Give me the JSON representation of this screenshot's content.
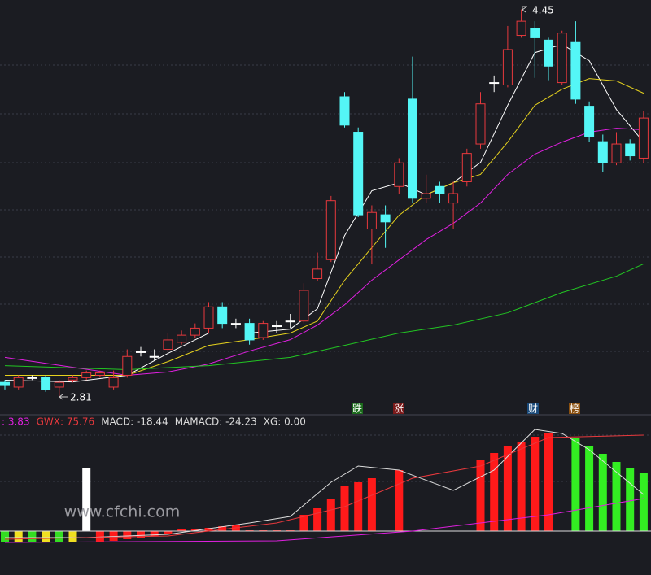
{
  "chart_data": [
    {
      "type": "candlestick",
      "categories": [
        null,
        null,
        null,
        null,
        null,
        null,
        null,
        null,
        null,
        null,
        null,
        null,
        null,
        null,
        null,
        null,
        null,
        null,
        null,
        null,
        null,
        null,
        null,
        null,
        null,
        null,
        null,
        null,
        null,
        null,
        null,
        null,
        null,
        null,
        null,
        null,
        null,
        null,
        null,
        null,
        null,
        null,
        null,
        null,
        null,
        null,
        null,
        null
      ],
      "open": [
        2.87,
        2.85,
        2.89,
        2.89,
        2.85,
        2.88,
        2.89,
        2.9,
        2.85,
        2.9,
        3.0,
        2.98,
        3.01,
        3.04,
        3.07,
        3.1,
        3.19,
        3.12,
        3.12,
        3.06,
        3.11,
        3.13,
        3.13,
        3.31,
        3.39,
        4.08,
        3.93,
        3.52,
        3.58,
        3.7,
        4.07,
        3.65,
        3.7,
        3.63,
        3.72,
        3.88,
        4.14,
        4.13,
        4.34,
        4.37,
        4.32,
        4.14,
        4.31,
        4.04,
        3.89,
        3.8,
        3.88,
        3.82
      ],
      "high": [
        2.88,
        2.9,
        2.9,
        2.9,
        2.88,
        2.9,
        2.92,
        2.92,
        2.92,
        3.01,
        3.02,
        3.01,
        3.08,
        3.09,
        3.12,
        3.21,
        3.21,
        3.14,
        3.14,
        3.13,
        3.13,
        3.16,
        3.29,
        3.42,
        3.66,
        4.1,
        3.95,
        3.62,
        3.62,
        3.82,
        4.25,
        3.75,
        3.72,
        3.72,
        3.86,
        4.1,
        4.17,
        4.38,
        4.45,
        4.4,
        4.33,
        4.36,
        4.4,
        4.06,
        3.92,
        3.93,
        3.9,
        4.02
      ],
      "low": [
        2.84,
        2.84,
        2.88,
        2.83,
        2.81,
        2.87,
        2.88,
        2.89,
        2.84,
        2.89,
        2.98,
        2.96,
        3.0,
        3.03,
        3.06,
        3.08,
        3.1,
        3.1,
        3.03,
        3.05,
        3.08,
        3.1,
        3.12,
        3.3,
        3.38,
        3.95,
        3.57,
        3.37,
        3.44,
        3.67,
        3.63,
        3.63,
        3.63,
        3.52,
        3.7,
        3.86,
        4.1,
        4.12,
        4.33,
        4.16,
        4.15,
        4.13,
        4.05,
        3.89,
        3.76,
        3.79,
        3.81,
        3.8
      ],
      "close": [
        2.86,
        2.89,
        2.89,
        2.84,
        2.87,
        2.89,
        2.91,
        2.91,
        2.89,
        2.98,
        3.0,
        2.98,
        3.05,
        3.07,
        3.1,
        3.19,
        3.12,
        3.12,
        3.05,
        3.12,
        3.11,
        3.13,
        3.26,
        3.35,
        3.64,
        3.96,
        3.58,
        3.59,
        3.55,
        3.8,
        3.65,
        3.67,
        3.67,
        3.67,
        3.84,
        4.05,
        4.14,
        4.28,
        4.4,
        4.33,
        4.21,
        4.35,
        4.07,
        3.91,
        3.8,
        3.88,
        3.83,
        3.99
      ],
      "up_color": "#e8393d",
      "down_color": "#54f6f6",
      "flat_color": "#ffffff",
      "ylim": [
        2.75,
        4.49
      ],
      "series": [
        {
          "color": "#ffffff",
          "x": [
            0,
            5,
            9,
            12,
            15,
            18,
            21,
            23,
            25,
            27,
            29,
            31,
            33,
            35,
            37,
            39,
            41,
            43,
            45,
            47
          ],
          "values": [
            2.879,
            2.872,
            2.9,
            2.993,
            3.079,
            3.079,
            3.096,
            3.182,
            3.492,
            3.682,
            3.716,
            3.665,
            3.716,
            3.802,
            4.044,
            4.267,
            4.302,
            4.233,
            4.026,
            3.888
          ]
        },
        {
          "color": "#e6d21e",
          "x": [
            0,
            9,
            12,
            15,
            18,
            21,
            23,
            25,
            27,
            29,
            31,
            33,
            35,
            37,
            39,
            41,
            43,
            45,
            47
          ],
          "values": [
            2.9,
            2.9,
            2.958,
            3.027,
            3.051,
            3.079,
            3.13,
            3.303,
            3.441,
            3.578,
            3.665,
            3.716,
            3.751,
            3.888,
            4.044,
            4.112,
            4.157,
            4.147,
            4.095
          ]
        },
        {
          "color": "#e020e0",
          "x": [
            0,
            5,
            9,
            12,
            15,
            18,
            21,
            23,
            25,
            27,
            29,
            31,
            33,
            35,
            37,
            39,
            41,
            43,
            45,
            47
          ],
          "values": [
            2.976,
            2.934,
            2.9,
            2.914,
            2.948,
            3.003,
            3.051,
            3.113,
            3.199,
            3.303,
            3.389,
            3.475,
            3.544,
            3.63,
            3.751,
            3.837,
            3.888,
            3.93,
            3.947,
            3.94
          ]
        },
        {
          "color": "#22c522",
          "x": [
            0,
            9,
            15,
            21,
            25,
            29,
            33,
            37,
            41,
            45,
            47
          ],
          "values": [
            2.941,
            2.924,
            2.941,
            2.976,
            3.027,
            3.079,
            3.113,
            3.165,
            3.251,
            3.32,
            3.372
          ]
        }
      ],
      "high_label": "4.45",
      "low_label": "2.81",
      "markers": [
        "跌",
        "涨",
        "财",
        "榜"
      ],
      "watermark": "www.cfchi.com"
    },
    {
      "type": "histogram-panel",
      "indicators": [
        {
          "text": ": 3.83",
          "color": "#e020e0"
        },
        {
          "text": "GWX: 75.76",
          "color": "#e8393d"
        },
        {
          "text": "MACD: -18.44",
          "color": "#dddddd"
        },
        {
          "text": "MAMACD: -24.23",
          "color": "#dddddd"
        },
        {
          "text": "XG: 0.00",
          "color": "#dddddd"
        }
      ],
      "ylim": [
        -54,
        138
      ],
      "values": [
        -14,
        -14,
        -14,
        -14,
        -14,
        -14,
        78,
        -14,
        -12,
        -10,
        -8,
        -6,
        -4,
        2,
        2,
        4,
        6,
        8,
        1,
        1,
        1,
        1,
        20,
        28,
        40,
        55,
        60,
        65,
        0,
        75,
        0,
        0,
        0,
        0,
        0,
        88,
        96,
        104,
        110,
        116,
        120,
        0,
        115,
        105,
        95,
        85,
        78,
        72
      ],
      "colors": [
        "#33dd22",
        "#f0e020",
        "#33dd22",
        "#f0e020",
        "#33dd22",
        "#f0e020",
        "#ffffff",
        "#ff1a1a",
        "#ff1a1a",
        "#ff1a1a",
        "#ff1a1a",
        "#ff1a1a",
        "#ff1a1a",
        "#ff1a1a",
        "#ff1a1a",
        "#ff1a1a",
        "#ff1a1a",
        "#ff1a1a",
        "#ff1a1a",
        "#ff1a1a",
        "#ff1a1a",
        "#ff1a1a",
        "#ff1a1a",
        "#ff1a1a",
        "#ff1a1a",
        "#ff1a1a",
        "#ff1a1a",
        "#ff1a1a",
        "#ff1a1a",
        "#ff1a1a",
        "#ff1a1a",
        "#ff1a1a",
        "#ff1a1a",
        "#ff1a1a",
        "#ff1a1a",
        "#ff1a1a",
        "#ff1a1a",
        "#ff1a1a",
        "#ff1a1a",
        "#ff1a1a",
        "#ff1a1a",
        "#33ee22",
        "#33ee22",
        "#33ee22",
        "#33ee22",
        "#33ee22",
        "#33ee22",
        "#33ee22"
      ],
      "series": [
        {
          "color": "#dddddd",
          "x": [
            0,
            6,
            12,
            18,
            21,
            24,
            26,
            29,
            33,
            36,
            39,
            41,
            43,
            47
          ],
          "values": [
            -8,
            -8,
            -4,
            10,
            18,
            60,
            80,
            75,
            50,
            75,
            125,
            120,
            100,
            45
          ]
        },
        {
          "color": "#e8393d",
          "x": [
            0,
            12,
            20,
            25,
            30,
            35,
            40,
            47
          ],
          "values": [
            -10,
            -6,
            10,
            30,
            65,
            80,
            115,
            118
          ]
        },
        {
          "color": "#e020e0",
          "x": [
            0,
            20,
            30,
            40,
            47
          ],
          "values": [
            -14,
            -12,
            0,
            20,
            40
          ]
        }
      ]
    }
  ]
}
